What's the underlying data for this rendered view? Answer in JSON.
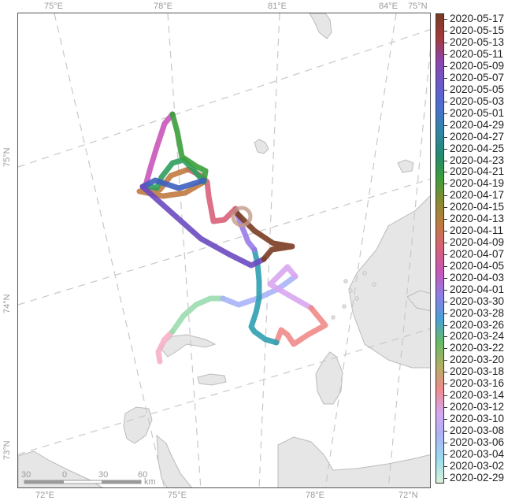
{
  "map": {
    "top_ticks": [
      "75°E",
      "78°E",
      "81°E",
      "84°E",
      "75°N"
    ],
    "bottom_ticks": [
      "72°E",
      "75°E",
      "78°E",
      "72°N"
    ],
    "left_ticks": [
      "75°N",
      "74°N",
      "73°N"
    ],
    "scale_bar": {
      "labels": [
        "30",
        "0",
        "30",
        "60"
      ],
      "unit": "km"
    },
    "land_color": "#e6e6e6",
    "graticule_color": "#c8c8c8"
  },
  "colorbar": {
    "dates": [
      "2020-05-17",
      "2020-05-15",
      "2020-05-13",
      "2020-05-11",
      "2020-05-09",
      "2020-05-07",
      "2020-05-05",
      "2020-05-03",
      "2020-05-01",
      "2020-04-29",
      "2020-04-27",
      "2020-04-25",
      "2020-04-23",
      "2020-04-21",
      "2020-04-19",
      "2020-04-17",
      "2020-04-15",
      "2020-04-13",
      "2020-04-11",
      "2020-04-09",
      "2020-04-07",
      "2020-04-05",
      "2020-04-03",
      "2020-04-01",
      "2020-03-30",
      "2020-03-28",
      "2020-03-26",
      "2020-03-24",
      "2020-03-22",
      "2020-03-20",
      "2020-03-18",
      "2020-03-16",
      "2020-03-14",
      "2020-03-12",
      "2020-03-10",
      "2020-03-08",
      "2020-03-06",
      "2020-03-04",
      "2020-03-02",
      "2020-02-29"
    ],
    "colors_top_to_bottom": [
      "#7a3b22",
      "#a33a3a",
      "#8e44ad",
      "#6a5acd",
      "#4a6fd0",
      "#2f86a6",
      "#238a70",
      "#3b9e3b",
      "#8a8a30",
      "#c07a40",
      "#d8607a",
      "#c857b8",
      "#8e7de8",
      "#4aa0d8",
      "#66bb66",
      "#b0b060",
      "#f08a8a",
      "#d6a6f0",
      "#aab4f8",
      "#9adcef",
      "#d8f2d8"
    ]
  },
  "track": {
    "colors_chronological": [
      "#f7b0c6",
      "#f0b8d0",
      "#9adcb0",
      "#9ad6e8",
      "#7ec8e8",
      "#aab4f8",
      "#c8a6f4",
      "#d8a6f0",
      "#f08a8a",
      "#e89a6a",
      "#b0a040",
      "#66aa44",
      "#4aa870",
      "#2fa0b0",
      "#4a9ad8",
      "#6a8ee0",
      "#9a7ae8",
      "#b060d0",
      "#c857b8",
      "#d8607a",
      "#c07a40",
      "#2e9e5e",
      "#3b9e3b",
      "#3f5fc0",
      "#6a4ac0",
      "#8e3ab0",
      "#a33a3a",
      "#7a3b22"
    ],
    "release_marker_color": "#c49a8a"
  }
}
